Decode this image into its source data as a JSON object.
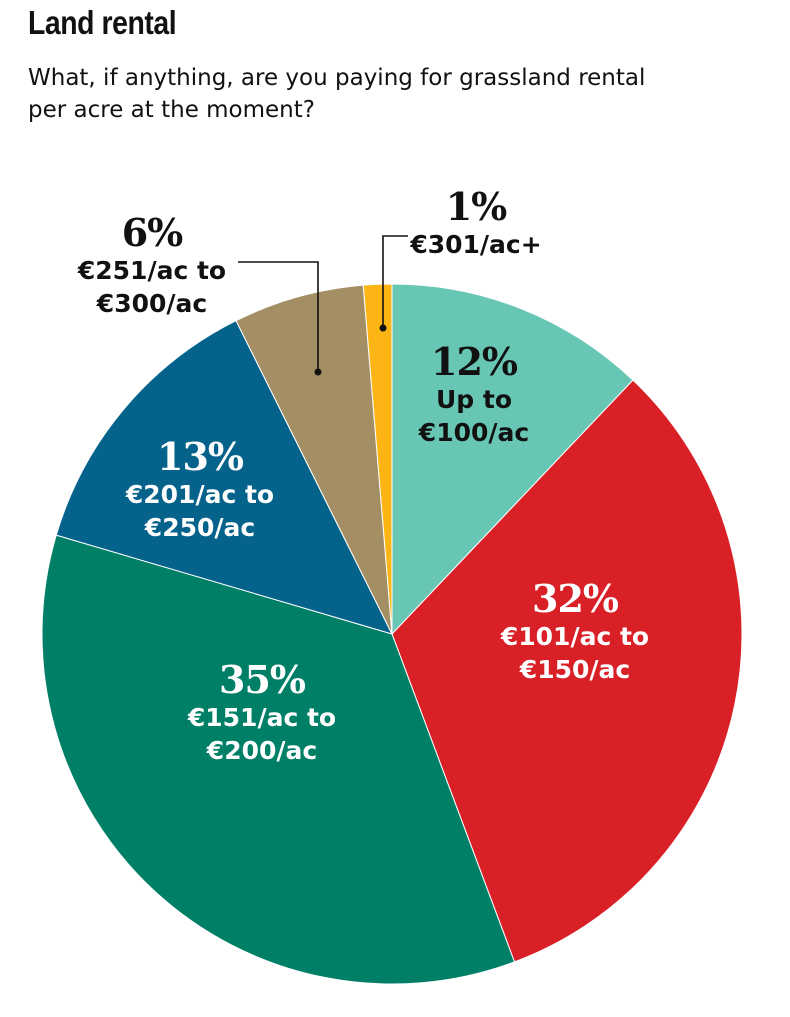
{
  "title": "Land rental",
  "subtitle_line1": "What, if anything, are you paying for grassland rental",
  "subtitle_line2": "per acre at the moment?",
  "chart_data": {
    "type": "pie",
    "start_angle_deg": 0,
    "direction": "clockwise",
    "slices": [
      {
        "key": "s1",
        "percent_label": "12%",
        "value": 12,
        "label_lines": [
          "Up to",
          "€100/ac"
        ],
        "color": "#67c6b4",
        "text_color": "#111111",
        "label_position": "inside"
      },
      {
        "key": "s2",
        "percent_label": "32%",
        "value": 32,
        "label_lines": [
          "€101/ac to",
          "€150/ac"
        ],
        "color": "#d92027",
        "text_color": "#ffffff",
        "label_position": "inside"
      },
      {
        "key": "s3",
        "percent_label": "35%",
        "value": 35,
        "label_lines": [
          "€151/ac to",
          "€200/ac"
        ],
        "color": "#007f67",
        "text_color": "#ffffff",
        "label_position": "inside"
      },
      {
        "key": "s4",
        "percent_label": "13%",
        "value": 13,
        "label_lines": [
          "€201/ac to",
          "€250/ac"
        ],
        "color": "#05628b",
        "text_color": "#ffffff",
        "label_position": "inside"
      },
      {
        "key": "s5",
        "percent_label": "6%",
        "value": 6,
        "label_lines": [
          "€251/ac to",
          "€300/ac"
        ],
        "color": "#a48e64",
        "text_color": "#111111",
        "label_position": "outside-left"
      },
      {
        "key": "s6",
        "percent_label": "1%",
        "value": 1.3,
        "label_lines": [
          "€301/ac+"
        ],
        "color": "#fdb515",
        "text_color": "#111111",
        "label_position": "outside-top"
      }
    ]
  }
}
